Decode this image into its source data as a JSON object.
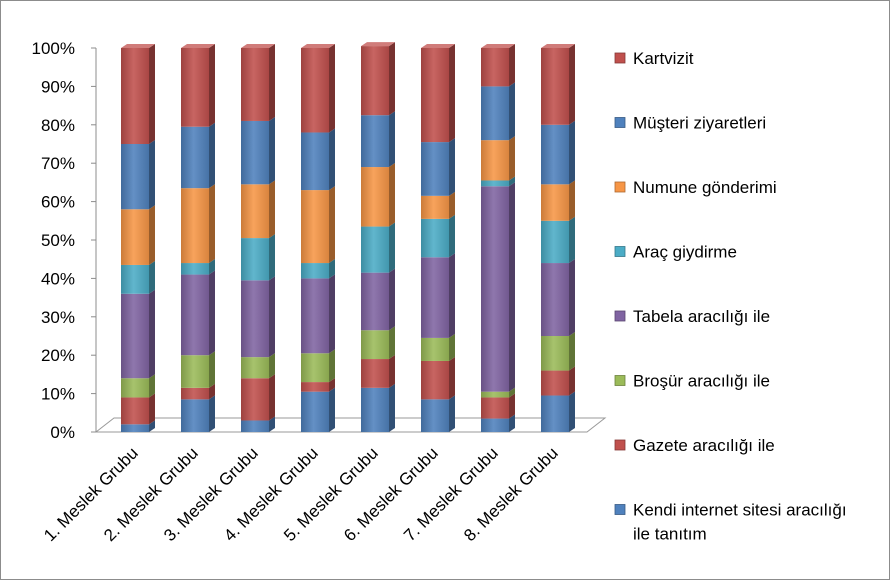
{
  "chart_data": {
    "type": "bar",
    "stacked": true,
    "percent_stacked": true,
    "title": "",
    "xlabel": "",
    "ylabel": "",
    "ylim": [
      0,
      100
    ],
    "y_ticks": [
      "0%",
      "10%",
      "20%",
      "30%",
      "40%",
      "50%",
      "60%",
      "70%",
      "80%",
      "90%",
      "100%"
    ],
    "grid": false,
    "legend_position": "right",
    "categories": [
      "1. Meslek Grubu",
      "2. Meslek Grubu",
      "3. Meslek Grubu",
      "4. Meslek Grubu",
      "5. Meslek Grubu",
      "6. Meslek Grubu",
      "7. Meslek Grubu",
      "8. Meslek Grubu"
    ],
    "series": [
      {
        "name": "Kendi internet sitesi aracılığı ile tanıtım",
        "color": "#4f81bd",
        "values": [
          2,
          8.5,
          3,
          10.5,
          11.5,
          8.5,
          3.5,
          9.5
        ]
      },
      {
        "name": "Gazete aracılığı ile",
        "color": "#c0504d",
        "values": [
          7,
          3,
          11,
          2.5,
          7.5,
          10,
          5.5,
          6.5
        ]
      },
      {
        "name": "Broşür aracılığı ile",
        "color": "#9bbb59",
        "values": [
          5,
          8.5,
          5.5,
          7.5,
          7.5,
          6,
          1.5,
          9
        ]
      },
      {
        "name": "Tabela aracılığı ile",
        "color": "#8064a2",
        "values": [
          22,
          21,
          20,
          19.5,
          15,
          21,
          53.5,
          19
        ]
      },
      {
        "name": "Araç giydirme",
        "color": "#4bacc6",
        "values": [
          7.5,
          3,
          11,
          4,
          12,
          10,
          1.5,
          11
        ]
      },
      {
        "name": "Numune gönderimi",
        "color": "#f79646",
        "values": [
          14.5,
          19.5,
          14,
          19,
          15.5,
          6,
          10.5,
          9.5
        ]
      },
      {
        "name": "Müşteri ziyaretleri",
        "color": "#4f81bd",
        "values": [
          17,
          16,
          16.5,
          15,
          13.5,
          14,
          14,
          15.5
        ]
      },
      {
        "name": "Kartvizit",
        "color": "#c0504d",
        "values": [
          25,
          20.5,
          19,
          22,
          18,
          24.5,
          10,
          20
        ]
      }
    ],
    "legend_order": [
      "Kartvizit",
      "Müşteri ziyaretleri",
      "Numune gönderimi",
      "Araç giydirme",
      "Tabela aracılığı ile",
      "Broşür aracılığı ile",
      "Gazete aracılığı ile",
      "Kendi internet sitesi aracılığı ile tanıtım"
    ],
    "legend_label_lines": {
      "Kendi internet sitesi aracılığı ile tanıtım": [
        "Kendi internet sitesi aracılığı",
        "ile tanıtım"
      ]
    }
  }
}
